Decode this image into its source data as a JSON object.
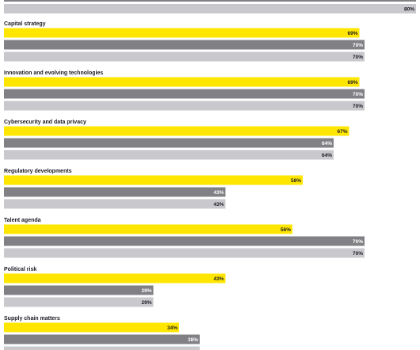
{
  "chart_data": {
    "type": "bar",
    "orientation": "horizontal",
    "title": "",
    "xlabel": "",
    "ylabel": "",
    "xlim": [
      0,
      100
    ],
    "grid": false,
    "legend": "none",
    "colors": [
      "#ffe600",
      "#808085",
      "#c8c8cd"
    ],
    "label_colors": [
      "#1a1a24",
      "#ffffff",
      "#1a1a24"
    ],
    "value_suffix": "%",
    "top_partial": {
      "values": [
        80
      ],
      "value_labels": [
        "80%"
      ]
    },
    "categories": [
      {
        "name": "Capital strategy",
        "values": [
          69,
          70,
          70
        ],
        "value_labels": [
          "69%",
          "70%",
          "70%"
        ]
      },
      {
        "name": "Innovation and evolving technologies",
        "values": [
          69,
          70,
          70
        ],
        "value_labels": [
          "69%",
          "70%",
          "70%"
        ]
      },
      {
        "name": "Cybersecurity and data privacy",
        "values": [
          67,
          64,
          64
        ],
        "value_labels": [
          "67%",
          "64%",
          "64%"
        ]
      },
      {
        "name": "Regulatory developments",
        "values": [
          58,
          43,
          43
        ],
        "value_labels": [
          "58%",
          "43%",
          "43%"
        ]
      },
      {
        "name": "Talent agenda",
        "values": [
          56,
          70,
          70
        ],
        "value_labels": [
          "56%",
          "70%",
          "70%"
        ]
      },
      {
        "name": "Political risk",
        "values": [
          43,
          29,
          29
        ],
        "value_labels": [
          "43%",
          "29%",
          "29%"
        ]
      },
      {
        "name": "Supply chain matters",
        "values": [
          34,
          38,
          38
        ],
        "value_labels": [
          "34%",
          "38%",
          ""
        ]
      }
    ]
  }
}
